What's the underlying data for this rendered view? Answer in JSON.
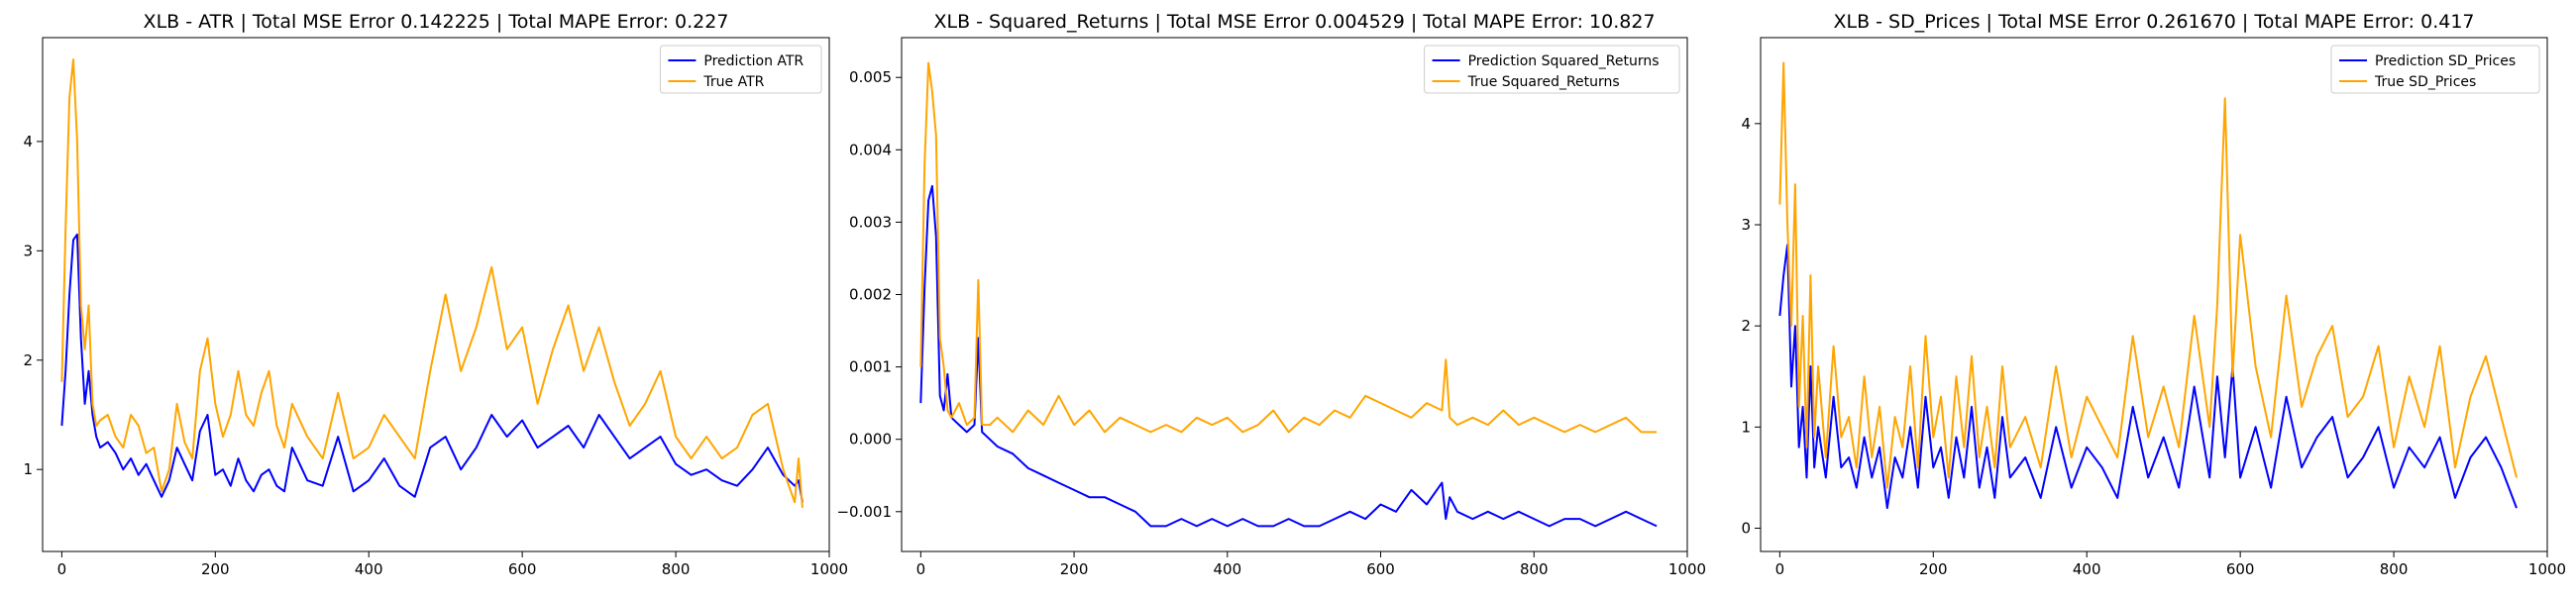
{
  "chart_data": [
    {
      "type": "line",
      "title": "XLB - ATR | Total MSE Error 0.142225 | Total MAPE Error: 0.227",
      "xlabel": "",
      "ylabel": "",
      "xlim": [
        -25,
        1000
      ],
      "ylim": [
        0.25,
        4.95
      ],
      "xticks": [
        0,
        200,
        400,
        600,
        800,
        1000
      ],
      "yticks": [
        1,
        2,
        3,
        4
      ],
      "grid": false,
      "legend_position": "top-right",
      "series": [
        {
          "name": "Prediction ATR",
          "color": "#0000ff",
          "x": [
            0,
            5,
            10,
            15,
            20,
            25,
            30,
            35,
            40,
            45,
            50,
            60,
            70,
            80,
            90,
            100,
            110,
            120,
            130,
            140,
            150,
            160,
            170,
            180,
            190,
            200,
            210,
            220,
            230,
            240,
            250,
            260,
            270,
            280,
            290,
            300,
            320,
            340,
            360,
            380,
            400,
            420,
            440,
            460,
            480,
            500,
            520,
            540,
            560,
            580,
            600,
            620,
            640,
            660,
            680,
            700,
            720,
            740,
            760,
            780,
            800,
            820,
            840,
            860,
            880,
            900,
            920,
            940,
            955,
            960,
            965
          ],
          "y": [
            1.4,
            1.9,
            2.6,
            3.1,
            3.15,
            2.2,
            1.6,
            1.9,
            1.5,
            1.3,
            1.2,
            1.25,
            1.15,
            1.0,
            1.1,
            0.95,
            1.05,
            0.9,
            0.75,
            0.9,
            1.2,
            1.05,
            0.9,
            1.35,
            1.5,
            0.95,
            1.0,
            0.85,
            1.1,
            0.9,
            0.8,
            0.95,
            1.0,
            0.85,
            0.8,
            1.2,
            0.9,
            0.85,
            1.3,
            0.8,
            0.9,
            1.1,
            0.85,
            0.75,
            1.2,
            1.3,
            1.0,
            1.2,
            1.5,
            1.3,
            1.45,
            1.2,
            1.3,
            1.4,
            1.2,
            1.5,
            1.3,
            1.1,
            1.2,
            1.3,
            1.05,
            0.95,
            1.0,
            0.9,
            0.85,
            1.0,
            1.2,
            0.95,
            0.85,
            0.9,
            0.7
          ]
        },
        {
          "name": "True ATR",
          "color": "#ffa500",
          "x": [
            0,
            5,
            10,
            15,
            20,
            25,
            30,
            35,
            40,
            45,
            50,
            60,
            70,
            80,
            90,
            100,
            110,
            120,
            130,
            140,
            150,
            160,
            170,
            180,
            190,
            200,
            210,
            220,
            230,
            240,
            250,
            260,
            270,
            280,
            290,
            300,
            320,
            340,
            360,
            380,
            400,
            420,
            440,
            460,
            480,
            500,
            520,
            540,
            560,
            580,
            600,
            620,
            640,
            660,
            680,
            700,
            720,
            740,
            760,
            780,
            800,
            820,
            840,
            860,
            880,
            900,
            920,
            940,
            955,
            960,
            965
          ],
          "y": [
            1.8,
            3.2,
            4.4,
            4.75,
            4.0,
            2.5,
            2.1,
            2.5,
            1.6,
            1.4,
            1.45,
            1.5,
            1.3,
            1.2,
            1.5,
            1.4,
            1.15,
            1.2,
            0.8,
            1.0,
            1.6,
            1.25,
            1.1,
            1.9,
            2.2,
            1.6,
            1.3,
            1.5,
            1.9,
            1.5,
            1.4,
            1.7,
            1.9,
            1.4,
            1.2,
            1.6,
            1.3,
            1.1,
            1.7,
            1.1,
            1.2,
            1.5,
            1.3,
            1.1,
            1.9,
            2.6,
            1.9,
            2.3,
            2.85,
            2.1,
            2.3,
            1.6,
            2.1,
            2.5,
            1.9,
            2.3,
            1.8,
            1.4,
            1.6,
            1.9,
            1.3,
            1.1,
            1.3,
            1.1,
            1.2,
            1.5,
            1.6,
            1.0,
            0.7,
            1.1,
            0.65
          ]
        }
      ]
    },
    {
      "type": "line",
      "title": "XLB - Squared_Returns | Total MSE Error 0.004529 | Total MAPE Error: 10.827",
      "xlabel": "",
      "ylabel": "",
      "xlim": [
        -25,
        1000
      ],
      "ylim": [
        -0.00155,
        0.00555
      ],
      "xticks": [
        0,
        200,
        400,
        600,
        800,
        1000
      ],
      "yticks": [
        -0.001,
        0.0,
        0.001,
        0.002,
        0.003,
        0.004,
        0.005
      ],
      "ytick_labels": [
        "−0.001",
        "0.000",
        "0.001",
        "0.002",
        "0.003",
        "0.004",
        "0.005"
      ],
      "grid": false,
      "legend_position": "top-right",
      "series": [
        {
          "name": "Prediction Squared_Returns",
          "color": "#0000ff",
          "x": [
            0,
            5,
            10,
            15,
            20,
            25,
            30,
            35,
            40,
            50,
            60,
            70,
            75,
            80,
            90,
            100,
            120,
            140,
            160,
            180,
            200,
            220,
            240,
            260,
            280,
            300,
            320,
            340,
            360,
            380,
            400,
            420,
            440,
            460,
            480,
            500,
            520,
            540,
            560,
            580,
            600,
            620,
            640,
            660,
            680,
            685,
            690,
            700,
            720,
            740,
            760,
            780,
            800,
            820,
            840,
            860,
            880,
            900,
            920,
            940,
            960
          ],
          "y": [
            0.0005,
            0.0021,
            0.0033,
            0.0035,
            0.0028,
            0.0006,
            0.0004,
            0.0009,
            0.0003,
            0.0002,
            0.0001,
            0.0002,
            0.0014,
            0.0001,
            0.0,
            -0.0001,
            -0.0002,
            -0.0004,
            -0.0005,
            -0.0006,
            -0.0007,
            -0.0008,
            -0.0008,
            -0.0009,
            -0.001,
            -0.0012,
            -0.0012,
            -0.0011,
            -0.0012,
            -0.0011,
            -0.0012,
            -0.0011,
            -0.0012,
            -0.0012,
            -0.0011,
            -0.0012,
            -0.0012,
            -0.0011,
            -0.001,
            -0.0011,
            -0.0009,
            -0.001,
            -0.0007,
            -0.0009,
            -0.0006,
            -0.0011,
            -0.0008,
            -0.001,
            -0.0011,
            -0.001,
            -0.0011,
            -0.001,
            -0.0011,
            -0.0012,
            -0.0011,
            -0.0011,
            -0.0012,
            -0.0011,
            -0.001,
            -0.0011,
            -0.0012
          ]
        },
        {
          "name": "True Squared_Returns",
          "color": "#ffa500",
          "x": [
            0,
            5,
            10,
            15,
            20,
            25,
            30,
            35,
            40,
            50,
            60,
            70,
            75,
            80,
            90,
            100,
            120,
            140,
            160,
            180,
            200,
            220,
            240,
            260,
            280,
            300,
            320,
            340,
            360,
            380,
            400,
            420,
            440,
            460,
            480,
            500,
            520,
            540,
            560,
            580,
            600,
            620,
            640,
            660,
            680,
            685,
            690,
            700,
            720,
            740,
            760,
            780,
            800,
            820,
            840,
            860,
            880,
            900,
            920,
            940,
            960
          ],
          "y": [
            0.001,
            0.0038,
            0.0052,
            0.0048,
            0.0042,
            0.0014,
            0.001,
            0.0004,
            0.0003,
            0.0005,
            0.0002,
            0.0003,
            0.0022,
            0.0002,
            0.0002,
            0.0003,
            0.0001,
            0.0004,
            0.0002,
            0.0006,
            0.0002,
            0.0004,
            0.0001,
            0.0003,
            0.0002,
            0.0001,
            0.0002,
            0.0001,
            0.0003,
            0.0002,
            0.0003,
            0.0001,
            0.0002,
            0.0004,
            0.0001,
            0.0003,
            0.0002,
            0.0004,
            0.0003,
            0.0006,
            0.0005,
            0.0004,
            0.0003,
            0.0005,
            0.0004,
            0.0011,
            0.0003,
            0.0002,
            0.0003,
            0.0002,
            0.0004,
            0.0002,
            0.0003,
            0.0002,
            0.0001,
            0.0002,
            0.0001,
            0.0002,
            0.0003,
            0.0001,
            0.0001
          ]
        }
      ]
    },
    {
      "type": "line",
      "title": "XLB - SD_Prices | Total MSE Error 0.261670 | Total MAPE Error: 0.417",
      "xlabel": "",
      "ylabel": "",
      "xlim": [
        -25,
        1000
      ],
      "ylim": [
        -0.23,
        4.85
      ],
      "xticks": [
        0,
        200,
        400,
        600,
        800,
        1000
      ],
      "yticks": [
        0,
        1,
        2,
        3,
        4
      ],
      "grid": false,
      "legend_position": "top-right",
      "series": [
        {
          "name": "Prediction SD_Prices",
          "color": "#0000ff",
          "x": [
            0,
            5,
            10,
            15,
            20,
            25,
            30,
            35,
            40,
            45,
            50,
            60,
            70,
            80,
            90,
            100,
            110,
            120,
            130,
            140,
            150,
            160,
            170,
            180,
            190,
            200,
            210,
            220,
            230,
            240,
            250,
            260,
            270,
            280,
            290,
            300,
            320,
            340,
            360,
            380,
            400,
            420,
            440,
            460,
            480,
            500,
            520,
            540,
            560,
            570,
            580,
            590,
            600,
            620,
            640,
            660,
            680,
            700,
            720,
            740,
            760,
            780,
            800,
            820,
            840,
            860,
            880,
            900,
            920,
            940,
            960
          ],
          "y": [
            2.1,
            2.5,
            2.8,
            1.4,
            2.0,
            0.8,
            1.2,
            0.5,
            1.6,
            0.6,
            1.0,
            0.5,
            1.3,
            0.6,
            0.7,
            0.4,
            0.9,
            0.5,
            0.8,
            0.2,
            0.7,
            0.5,
            1.0,
            0.4,
            1.3,
            0.6,
            0.8,
            0.3,
            0.9,
            0.5,
            1.2,
            0.4,
            0.8,
            0.3,
            1.1,
            0.5,
            0.7,
            0.3,
            1.0,
            0.4,
            0.8,
            0.6,
            0.3,
            1.2,
            0.5,
            0.9,
            0.4,
            1.4,
            0.5,
            1.5,
            0.7,
            1.6,
            0.5,
            1.0,
            0.4,
            1.3,
            0.6,
            0.9,
            1.1,
            0.5,
            0.7,
            1.0,
            0.4,
            0.8,
            0.6,
            0.9,
            0.3,
            0.7,
            0.9,
            0.6,
            0.2
          ]
        },
        {
          "name": "True SD_Prices",
          "color": "#ffa500",
          "x": [
            0,
            5,
            10,
            15,
            20,
            25,
            30,
            35,
            40,
            45,
            50,
            60,
            70,
            80,
            90,
            100,
            110,
            120,
            130,
            140,
            150,
            160,
            170,
            180,
            190,
            200,
            210,
            220,
            230,
            240,
            250,
            260,
            270,
            280,
            290,
            300,
            320,
            340,
            360,
            380,
            400,
            420,
            440,
            460,
            480,
            500,
            520,
            540,
            560,
            570,
            580,
            590,
            600,
            620,
            640,
            660,
            680,
            700,
            720,
            740,
            760,
            780,
            800,
            820,
            840,
            860,
            880,
            900,
            920,
            940,
            960
          ],
          "y": [
            3.2,
            4.6,
            3.0,
            2.0,
            3.4,
            1.2,
            2.1,
            0.8,
            2.5,
            0.9,
            1.6,
            0.7,
            1.8,
            0.9,
            1.1,
            0.6,
            1.5,
            0.7,
            1.2,
            0.4,
            1.1,
            0.8,
            1.6,
            0.6,
            1.9,
            0.9,
            1.3,
            0.5,
            1.5,
            0.8,
            1.7,
            0.7,
            1.2,
            0.6,
            1.6,
            0.8,
            1.1,
            0.6,
            1.6,
            0.7,
            1.3,
            1.0,
            0.7,
            1.9,
            0.9,
            1.4,
            0.8,
            2.1,
            1.0,
            2.2,
            4.25,
            1.5,
            2.9,
            1.6,
            0.9,
            2.3,
            1.2,
            1.7,
            2.0,
            1.1,
            1.3,
            1.8,
            0.8,
            1.5,
            1.0,
            1.8,
            0.6,
            1.3,
            1.7,
            1.1,
            0.5
          ]
        }
      ]
    }
  ]
}
